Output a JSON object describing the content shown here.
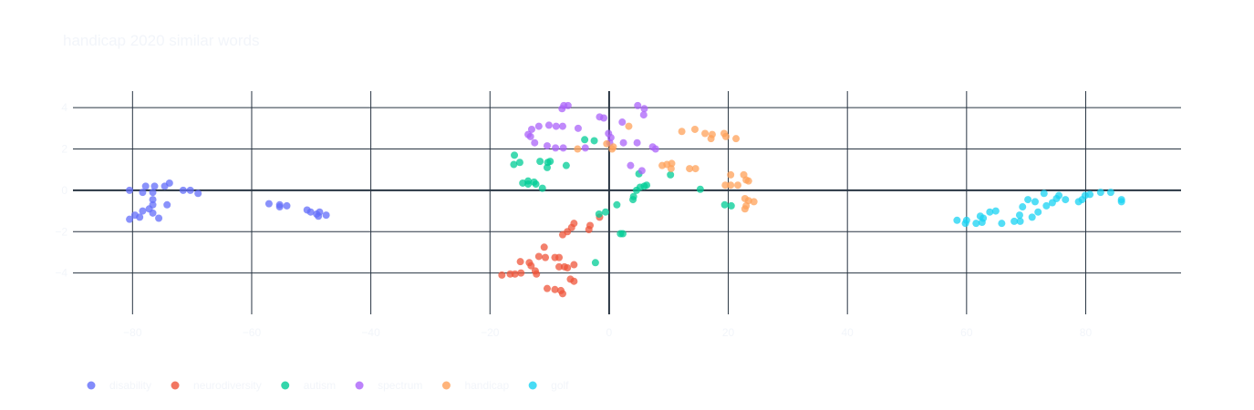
{
  "chart_data": {
    "type": "scatter",
    "title": "handicap 2020 similar words",
    "xlabel": "",
    "ylabel": "",
    "xlim": [
      -90,
      96
    ],
    "ylim": [
      -6,
      4.8
    ],
    "xticks": [
      -80,
      -60,
      -40,
      -20,
      0,
      20,
      40,
      60,
      80
    ],
    "xtick_labels": [
      "−80",
      "−60",
      "−40",
      "−20",
      "0",
      "20",
      "40",
      "60",
      "80"
    ],
    "yticks": [
      -4,
      -2,
      0,
      2,
      4
    ],
    "ytick_labels": [
      "−4",
      "−2",
      "0",
      "2",
      "4"
    ],
    "grid": true,
    "legend_position": "bottom-left",
    "series": [
      {
        "name": "disability",
        "color": "#636efa",
        "points": [
          [
            -80.5,
            0.0
          ],
          [
            -77.8,
            0.2
          ],
          [
            -76.3,
            0.2
          ],
          [
            -74.6,
            0.2
          ],
          [
            -73.8,
            0.35
          ],
          [
            -71.5,
            0.0
          ],
          [
            -70.3,
            0.0
          ],
          [
            -69.0,
            -0.15
          ],
          [
            -78.3,
            -0.1
          ],
          [
            -76.6,
            -0.1
          ],
          [
            -76.6,
            -0.45
          ],
          [
            -76.6,
            -0.7
          ],
          [
            -74.2,
            -0.7
          ],
          [
            -77.2,
            -0.9
          ],
          [
            -78.3,
            -1.0
          ],
          [
            -76.6,
            -1.1
          ],
          [
            -79.6,
            -1.2
          ],
          [
            -78.8,
            -1.3
          ],
          [
            -80.5,
            -1.4
          ],
          [
            -75.6,
            -1.35
          ],
          [
            -57.1,
            -0.65
          ],
          [
            -55.3,
            -0.7
          ],
          [
            -54.1,
            -0.75
          ],
          [
            -55.3,
            -0.8
          ],
          [
            -50.7,
            -0.95
          ],
          [
            -50.1,
            -1.05
          ],
          [
            -48.6,
            -1.05
          ],
          [
            -48.8,
            -1.25
          ],
          [
            -47.5,
            -1.2
          ],
          [
            -49.1,
            -1.15
          ]
        ]
      },
      {
        "name": "neurodiversity",
        "color": "#ef553b",
        "points": [
          [
            -1.6,
            -1.3
          ],
          [
            -3.2,
            -1.7
          ],
          [
            -5.9,
            -1.6
          ],
          [
            -6.3,
            -1.8
          ],
          [
            -7.0,
            -2.0
          ],
          [
            -7.8,
            -2.15
          ],
          [
            -3.4,
            -1.9
          ],
          [
            -10.9,
            -2.75
          ],
          [
            -11.8,
            -3.2
          ],
          [
            -10.7,
            -3.25
          ],
          [
            -9.1,
            -3.25
          ],
          [
            -8.4,
            -3.25
          ],
          [
            -14.9,
            -3.45
          ],
          [
            -13.4,
            -3.5
          ],
          [
            -13.1,
            -3.65
          ],
          [
            -8.4,
            -3.7
          ],
          [
            -7.5,
            -3.7
          ],
          [
            -7.0,
            -3.75
          ],
          [
            -5.9,
            -3.6
          ],
          [
            -12.4,
            -3.9
          ],
          [
            -12.2,
            -4.05
          ],
          [
            -14.8,
            -4.0
          ],
          [
            -15.8,
            -4.05
          ],
          [
            -16.6,
            -4.05
          ],
          [
            -18.0,
            -4.1
          ],
          [
            -6.5,
            -4.3
          ],
          [
            -5.9,
            -4.4
          ],
          [
            -10.4,
            -4.75
          ],
          [
            -9.1,
            -4.8
          ],
          [
            -8.1,
            -4.85
          ],
          [
            -7.8,
            -5.0
          ]
        ]
      },
      {
        "name": "autism",
        "color": "#00cc96",
        "points": [
          [
            -15.9,
            1.7
          ],
          [
            -15.0,
            1.35
          ],
          [
            -16.0,
            1.25
          ],
          [
            -11.6,
            1.4
          ],
          [
            -10.3,
            1.35
          ],
          [
            -9.9,
            1.4
          ],
          [
            -10.4,
            1.1
          ],
          [
            -7.2,
            1.2
          ],
          [
            -4.1,
            2.45
          ],
          [
            -2.5,
            2.4
          ],
          [
            -13.6,
            0.45
          ],
          [
            -12.6,
            0.4
          ],
          [
            -12.3,
            0.3
          ],
          [
            -13.6,
            0.3
          ],
          [
            -14.5,
            0.35
          ],
          [
            -11.2,
            0.1
          ],
          [
            -1.7,
            -1.15
          ],
          [
            -0.6,
            -1.05
          ],
          [
            1.3,
            -0.7
          ],
          [
            4.0,
            -0.45
          ],
          [
            4.1,
            -0.3
          ],
          [
            4.6,
            0.0
          ],
          [
            5.2,
            0.15
          ],
          [
            5.9,
            0.2
          ],
          [
            6.3,
            0.25
          ],
          [
            5.0,
            0.8
          ],
          [
            10.3,
            0.75
          ],
          [
            15.3,
            0.05
          ],
          [
            19.4,
            -0.7
          ],
          [
            20.5,
            -0.75
          ],
          [
            1.9,
            -2.1
          ],
          [
            2.3,
            -2.1
          ],
          [
            -2.3,
            -3.5
          ]
        ]
      },
      {
        "name": "spectrum",
        "color": "#ab63fa",
        "points": [
          [
            -7.6,
            4.1
          ],
          [
            -6.9,
            4.1
          ],
          [
            -7.9,
            3.95
          ],
          [
            -1.6,
            3.55
          ],
          [
            -0.9,
            3.5
          ],
          [
            2.2,
            3.3
          ],
          [
            4.8,
            4.1
          ],
          [
            5.9,
            3.95
          ],
          [
            5.8,
            3.65
          ],
          [
            -11.8,
            3.1
          ],
          [
            -10.1,
            3.15
          ],
          [
            -8.9,
            3.1
          ],
          [
            -7.8,
            3.1
          ],
          [
            -5.2,
            3.0
          ],
          [
            -13.0,
            2.95
          ],
          [
            -13.2,
            2.6
          ],
          [
            -13.6,
            2.7
          ],
          [
            -12.5,
            2.3
          ],
          [
            -0.1,
            2.75
          ],
          [
            0.3,
            2.55
          ],
          [
            0.1,
            2.3
          ],
          [
            2.4,
            2.3
          ],
          [
            4.7,
            2.3
          ],
          [
            -10.4,
            2.15
          ],
          [
            -9.0,
            2.05
          ],
          [
            -7.7,
            2.05
          ],
          [
            -4.0,
            2.05
          ],
          [
            7.3,
            2.1
          ],
          [
            7.8,
            2.0
          ],
          [
            3.6,
            1.2
          ],
          [
            5.5,
            0.95
          ]
        ]
      },
      {
        "name": "handicap",
        "color": "#ffa15a",
        "points": [
          [
            3.3,
            3.1
          ],
          [
            12.2,
            2.85
          ],
          [
            14.4,
            2.95
          ],
          [
            16.1,
            2.75
          ],
          [
            17.1,
            2.5
          ],
          [
            17.3,
            2.7
          ],
          [
            19.3,
            2.75
          ],
          [
            19.6,
            2.6
          ],
          [
            21.3,
            2.5
          ],
          [
            -0.4,
            2.25
          ],
          [
            -5.3,
            2.0
          ],
          [
            0.5,
            2.0
          ],
          [
            0.7,
            2.1
          ],
          [
            8.9,
            1.2
          ],
          [
            9.7,
            1.25
          ],
          [
            10.5,
            1.3
          ],
          [
            10.4,
            1.05
          ],
          [
            13.5,
            1.05
          ],
          [
            14.5,
            1.05
          ],
          [
            20.4,
            0.75
          ],
          [
            22.6,
            0.75
          ],
          [
            23.0,
            0.5
          ],
          [
            23.4,
            0.45
          ],
          [
            19.5,
            0.25
          ],
          [
            20.4,
            0.25
          ],
          [
            21.6,
            0.25
          ],
          [
            22.8,
            -0.4
          ],
          [
            23.4,
            -0.5
          ],
          [
            24.3,
            -0.55
          ],
          [
            23.0,
            -0.75
          ],
          [
            22.8,
            -0.9
          ]
        ]
      },
      {
        "name": "golf",
        "color": "#19d3f3",
        "points": [
          [
            58.4,
            -1.45
          ],
          [
            59.8,
            -1.6
          ],
          [
            60.0,
            -1.45
          ],
          [
            61.6,
            -1.6
          ],
          [
            62.6,
            -1.55
          ],
          [
            62.8,
            -1.35
          ],
          [
            62.3,
            -1.25
          ],
          [
            63.9,
            -1.05
          ],
          [
            64.9,
            -1.0
          ],
          [
            65.9,
            -1.6
          ],
          [
            68.0,
            -1.5
          ],
          [
            69.0,
            -1.5
          ],
          [
            68.9,
            -1.2
          ],
          [
            71.0,
            -1.3
          ],
          [
            72.0,
            -1.05
          ],
          [
            69.4,
            -0.8
          ],
          [
            70.3,
            -0.45
          ],
          [
            71.5,
            -0.55
          ],
          [
            73.0,
            -0.15
          ],
          [
            73.4,
            -0.75
          ],
          [
            74.4,
            -0.6
          ],
          [
            75.1,
            -0.4
          ],
          [
            75.5,
            -0.25
          ],
          [
            76.6,
            -0.45
          ],
          [
            78.8,
            -0.55
          ],
          [
            79.4,
            -0.45
          ],
          [
            79.9,
            -0.25
          ],
          [
            80.7,
            -0.2
          ],
          [
            82.5,
            -0.1
          ],
          [
            84.2,
            -0.1
          ],
          [
            86.0,
            -0.45
          ],
          [
            86.0,
            -0.55
          ]
        ]
      }
    ]
  }
}
